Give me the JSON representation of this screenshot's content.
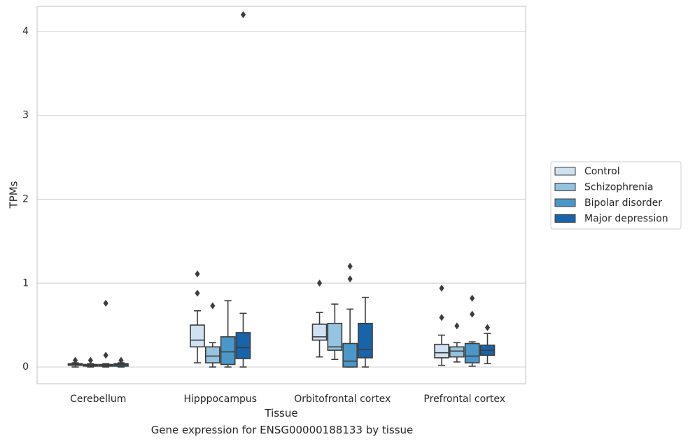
{
  "caption": "Gene expression for ENSG00000188133 by tissue",
  "chart_data": {
    "type": "box",
    "xlabel": "Tissue",
    "ylabel": "TPMs",
    "ylim": [
      -0.2,
      4.3
    ],
    "yticks": [
      0,
      1,
      2,
      3,
      4
    ],
    "grid": "horizontal",
    "legend_position": "right",
    "categories": [
      "Cerebellum",
      "Hipppocampus",
      "Orbitofrontal cortex",
      "Prefrontal cortex"
    ],
    "series": [
      {
        "name": "Control",
        "color": "#d0e1f2",
        "boxes": [
          {
            "whislo": 0.0,
            "q1": 0.02,
            "med": 0.03,
            "q3": 0.04,
            "whishi": 0.05,
            "fliers": [
              0.08
            ]
          },
          {
            "whislo": 0.05,
            "q1": 0.24,
            "med": 0.32,
            "q3": 0.5,
            "whishi": 0.67,
            "fliers": [
              0.88,
              1.11
            ]
          },
          {
            "whislo": 0.12,
            "q1": 0.32,
            "med": 0.36,
            "q3": 0.51,
            "whishi": 0.65,
            "fliers": [
              1.0
            ]
          },
          {
            "whislo": 0.02,
            "q1": 0.11,
            "med": 0.17,
            "q3": 0.27,
            "whishi": 0.38,
            "fliers": [
              0.59,
              0.94
            ]
          }
        ]
      },
      {
        "name": "Schizophrenia",
        "color": "#94c4df",
        "boxes": [
          {
            "whislo": 0.0,
            "q1": 0.01,
            "med": 0.02,
            "q3": 0.03,
            "whishi": 0.04,
            "fliers": [
              0.08
            ]
          },
          {
            "whislo": 0.0,
            "q1": 0.05,
            "med": 0.13,
            "q3": 0.24,
            "whishi": 0.29,
            "fliers": [
              0.73
            ]
          },
          {
            "whislo": 0.09,
            "q1": 0.2,
            "med": 0.24,
            "q3": 0.52,
            "whishi": 0.75,
            "fliers": []
          },
          {
            "whislo": 0.06,
            "q1": 0.12,
            "med": 0.19,
            "q3": 0.24,
            "whishi": 0.29,
            "fliers": [
              0.49
            ]
          }
        ]
      },
      {
        "name": "Bipolar disorder",
        "color": "#4a98c9",
        "boxes": [
          {
            "whislo": 0.0,
            "q1": 0.01,
            "med": 0.02,
            "q3": 0.03,
            "whishi": 0.04,
            "fliers": [
              0.14,
              0.76
            ]
          },
          {
            "whislo": 0.0,
            "q1": 0.03,
            "med": 0.18,
            "q3": 0.36,
            "whishi": 0.79,
            "fliers": []
          },
          {
            "whislo": 0.0,
            "q1": 0.0,
            "med": 0.07,
            "q3": 0.28,
            "whishi": 0.69,
            "fliers": [
              1.05,
              1.2
            ]
          },
          {
            "whislo": 0.01,
            "q1": 0.05,
            "med": 0.13,
            "q3": 0.28,
            "whishi": 0.3,
            "fliers": [
              0.63,
              0.82
            ]
          }
        ]
      },
      {
        "name": "Major depression",
        "color": "#1764ab",
        "boxes": [
          {
            "whislo": 0.0,
            "q1": 0.01,
            "med": 0.03,
            "q3": 0.04,
            "whishi": 0.05,
            "fliers": [
              0.08
            ]
          },
          {
            "whislo": 0.0,
            "q1": 0.1,
            "med": 0.23,
            "q3": 0.41,
            "whishi": 0.64,
            "fliers": [
              4.2
            ]
          },
          {
            "whislo": 0.0,
            "q1": 0.11,
            "med": 0.21,
            "q3": 0.52,
            "whishi": 0.83,
            "fliers": []
          },
          {
            "whislo": 0.04,
            "q1": 0.14,
            "med": 0.2,
            "q3": 0.26,
            "whishi": 0.4,
            "fliers": [
              0.47
            ]
          }
        ]
      }
    ]
  }
}
